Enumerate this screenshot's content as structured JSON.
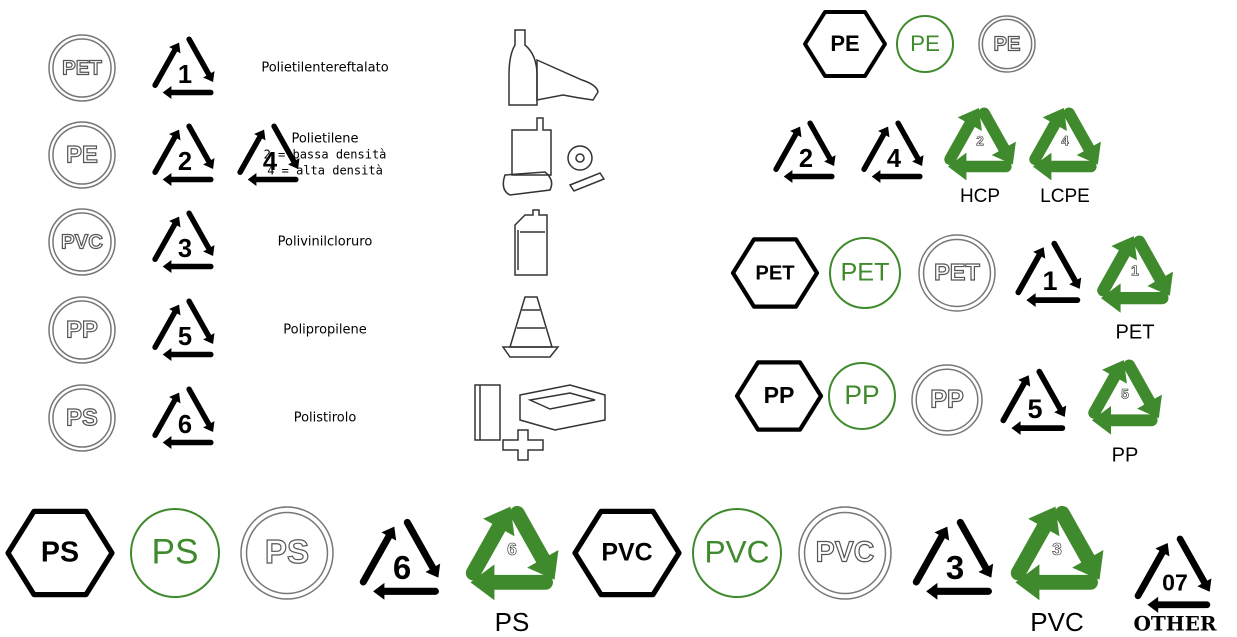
{
  "legend_rows": [
    {
      "code": "PET",
      "numbers": [
        "1"
      ],
      "description": [
        "Polietilentereftalato"
      ]
    },
    {
      "code": "PE",
      "numbers": [
        "2",
        "4"
      ],
      "description": [
        "Polietilene",
        "2 = bassa densità",
        "4 = alta densità"
      ]
    },
    {
      "code": "PVC",
      "numbers": [
        "3"
      ],
      "description": [
        "Polivinilcloruro"
      ]
    },
    {
      "code": "PP",
      "numbers": [
        "5"
      ],
      "description": [
        "Polipropilene"
      ]
    },
    {
      "code": "PS",
      "numbers": [
        "6"
      ],
      "description": [
        "Polistirolo"
      ]
    }
  ],
  "symbols": [
    {
      "shape": "hexagon",
      "text": "PE"
    },
    {
      "shape": "circle",
      "text": "PE"
    },
    {
      "shape": "double-circle",
      "text": "PE"
    },
    {
      "shape": "triangle",
      "text": "2"
    },
    {
      "shape": "triangle",
      "text": "4"
    },
    {
      "shape": "recycle",
      "text": "2"
    },
    {
      "shape": "recycle",
      "text": "4"
    },
    {
      "shape": "hexagon",
      "text": "PET"
    },
    {
      "shape": "circle",
      "text": "PET"
    },
    {
      "shape": "double-circle",
      "text": "PET"
    },
    {
      "shape": "triangle",
      "text": "1"
    },
    {
      "shape": "recycle",
      "text": "1"
    },
    {
      "shape": "hexagon",
      "text": "PP"
    },
    {
      "shape": "circle",
      "text": "PP"
    },
    {
      "shape": "double-circle",
      "text": "PP"
    },
    {
      "shape": "triangle",
      "text": "5"
    },
    {
      "shape": "recycle",
      "text": "5"
    },
    {
      "shape": "hexagon",
      "text": "PS"
    },
    {
      "shape": "circle",
      "text": "PS"
    },
    {
      "shape": "double-circle",
      "text": "PS"
    },
    {
      "shape": "triangle",
      "text": "6"
    },
    {
      "shape": "recycle",
      "text": "6"
    },
    {
      "shape": "hexagon",
      "text": "PVC"
    },
    {
      "shape": "circle",
      "text": "PVC"
    },
    {
      "shape": "double-circle",
      "text": "PVC"
    },
    {
      "shape": "triangle",
      "text": "3"
    },
    {
      "shape": "recycle",
      "text": "3"
    },
    {
      "shape": "triangle",
      "text": "07"
    }
  ],
  "captions": [
    "HCP",
    "LCPE",
    "PET",
    "PP",
    "PS",
    "PVC",
    "OTHER"
  ]
}
